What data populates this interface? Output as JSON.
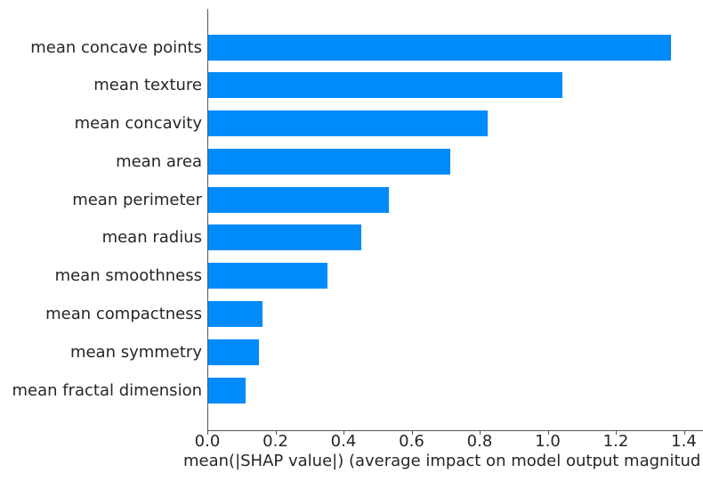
{
  "chart_data": {
    "type": "bar",
    "orientation": "horizontal",
    "title": "",
    "xlabel": "mean(|SHAP value|) (average impact on model output magnitud",
    "ylabel": "",
    "categories": [
      "mean concave points",
      "mean texture",
      "mean concavity",
      "mean area",
      "mean perimeter",
      "mean radius",
      "mean smoothness",
      "mean compactness",
      "mean symmetry",
      "mean fractal dimension"
    ],
    "values": [
      1.36,
      1.04,
      0.82,
      0.71,
      0.53,
      0.45,
      0.35,
      0.16,
      0.15,
      0.11
    ],
    "x_ticks": [
      "0.0",
      "0.2",
      "0.4",
      "0.6",
      "0.8",
      "1.0",
      "1.2",
      "1.4"
    ],
    "x_tick_values": [
      0.0,
      0.2,
      0.4,
      0.6,
      0.8,
      1.0,
      1.2,
      1.4
    ],
    "xlim": [
      0.0,
      1.46
    ],
    "grid": false,
    "legend": null,
    "bar_color": "#008bfb",
    "axis_color": "#555555",
    "text_color": "#262626"
  }
}
